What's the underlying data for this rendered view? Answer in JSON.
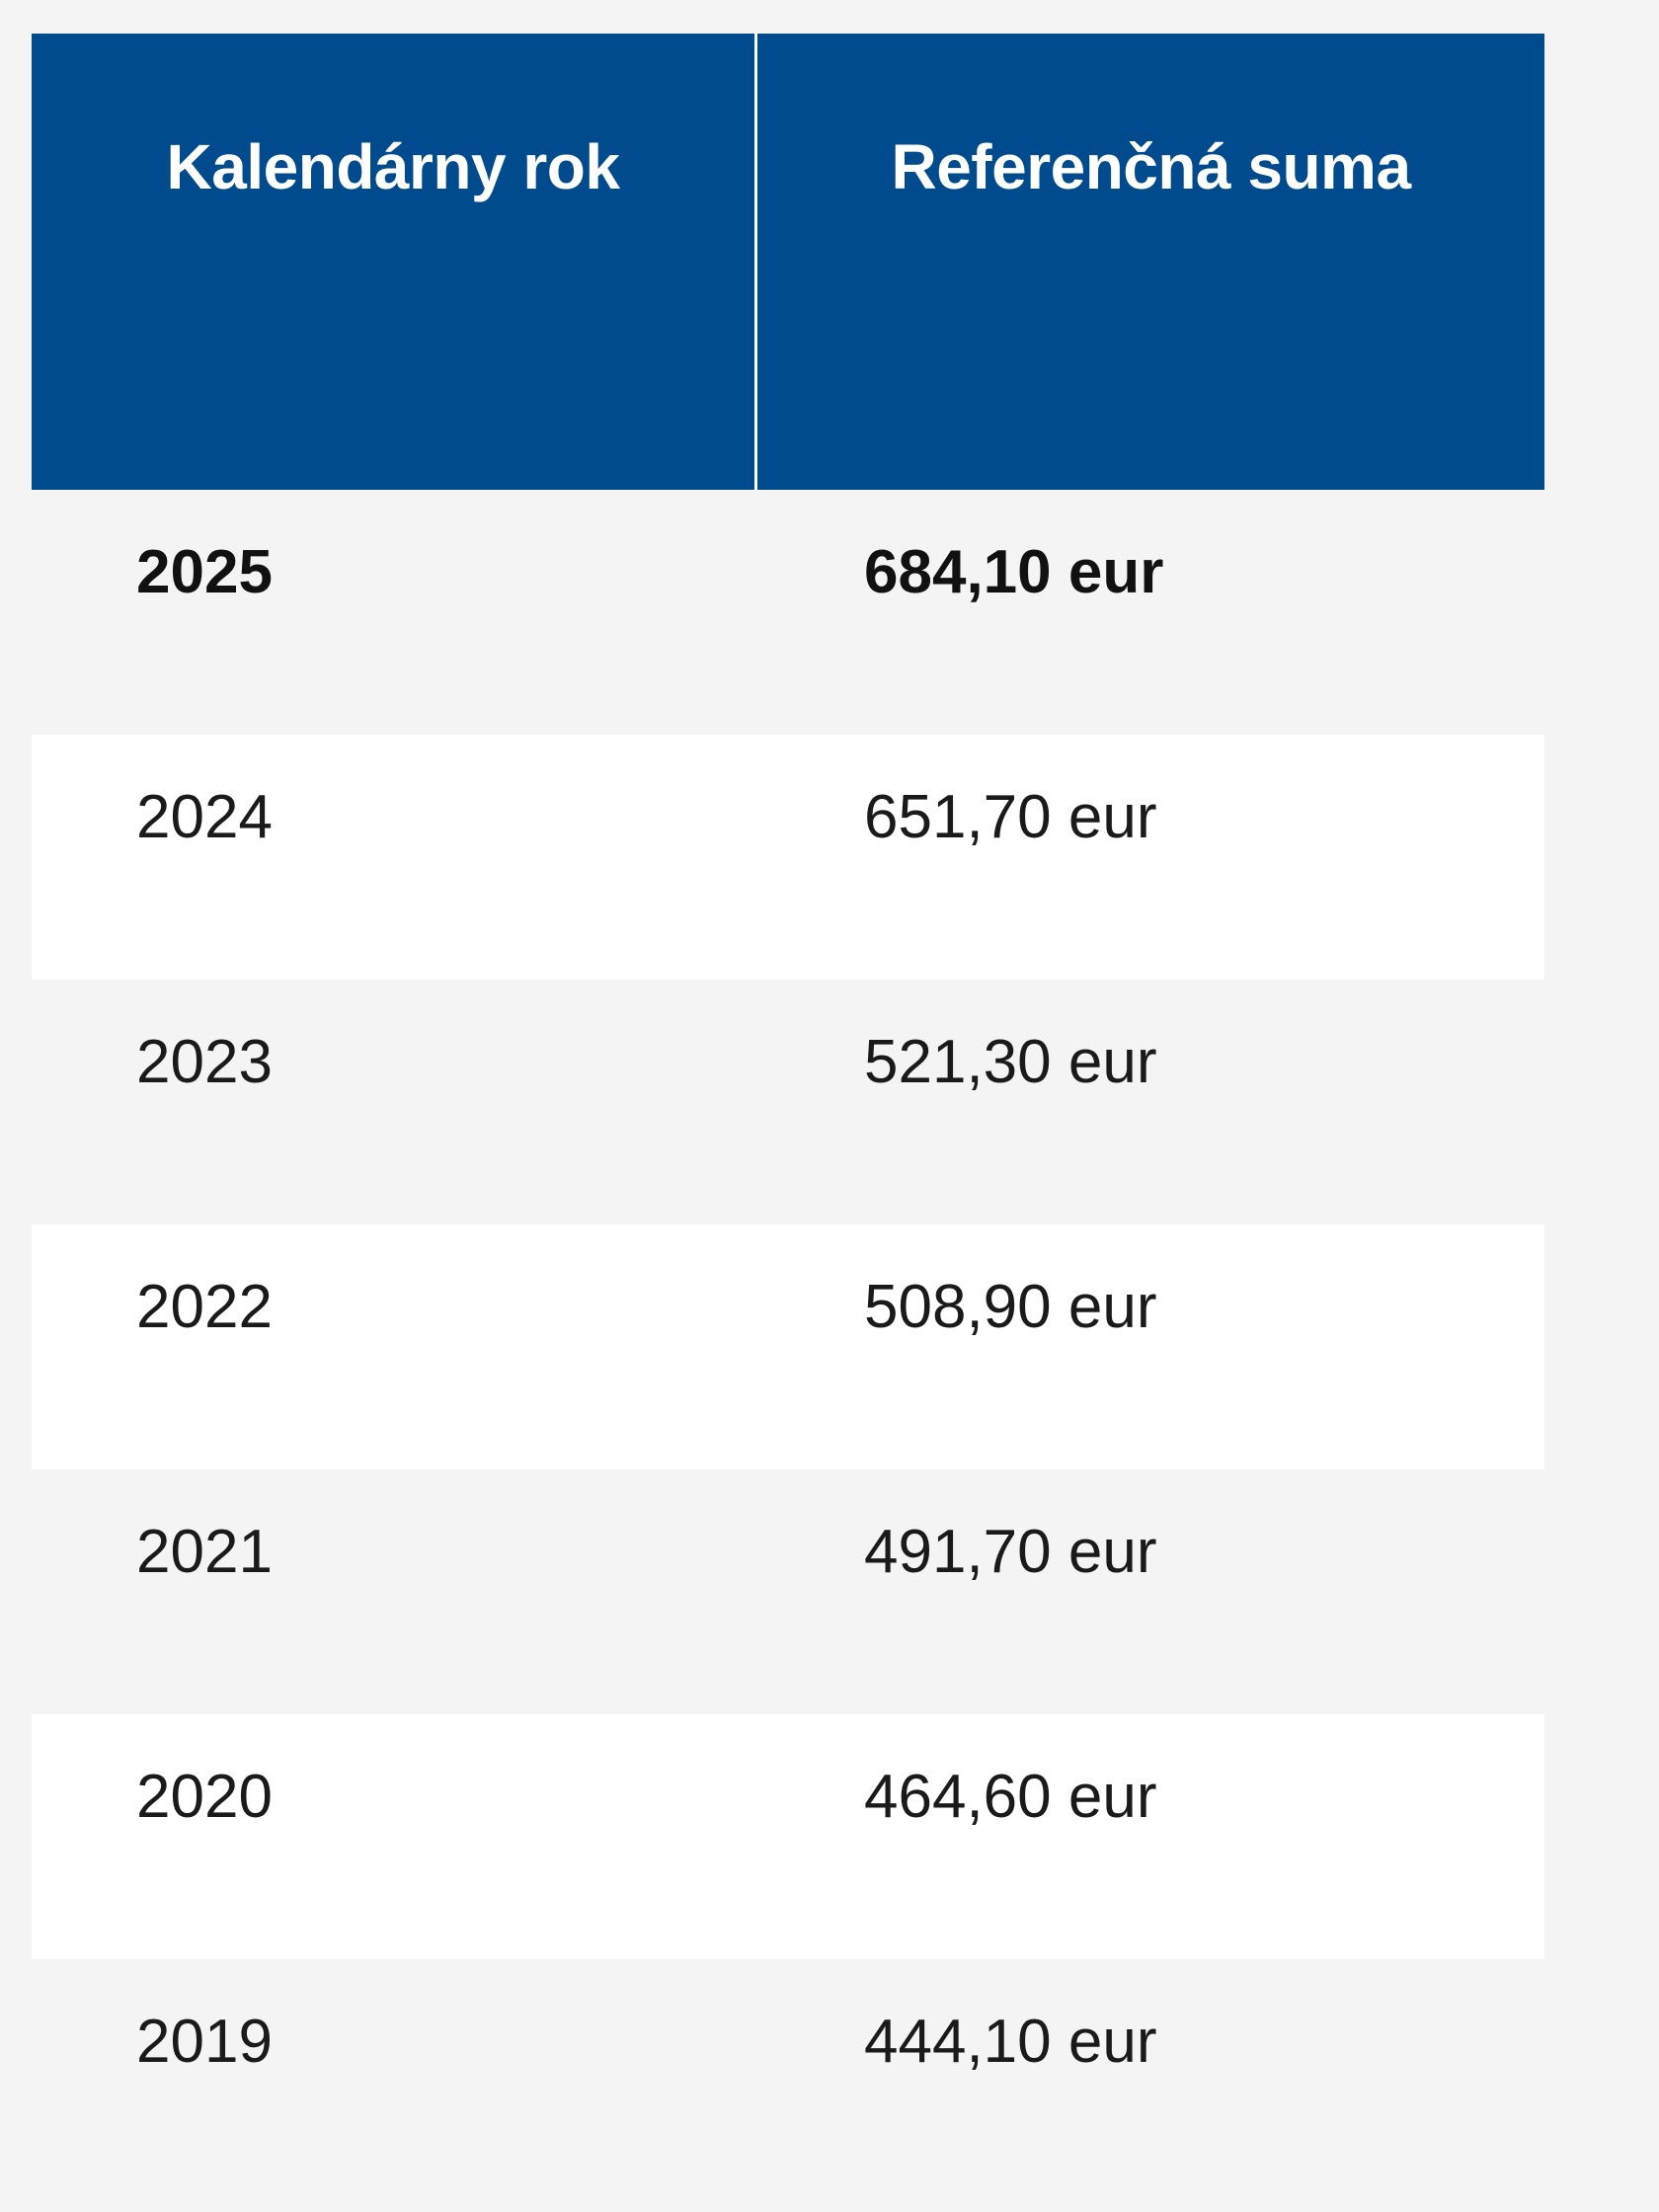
{
  "table": {
    "headers": {
      "year": "Kalendárny rok",
      "amount": "Referenčná suma"
    },
    "rows": [
      {
        "year": "2025",
        "amount": "684,10 eur",
        "bold": true
      },
      {
        "year": "2024",
        "amount": "651,70 eur",
        "bold": false
      },
      {
        "year": "2023",
        "amount": "521,30 eur",
        "bold": false
      },
      {
        "year": "2022",
        "amount": "508,90 eur",
        "bold": false
      },
      {
        "year": "2021",
        "amount": "491,70 eur",
        "bold": false
      },
      {
        "year": "2020",
        "amount": "464,60 eur",
        "bold": false
      },
      {
        "year": "2019",
        "amount": "444,10 eur",
        "bold": false
      }
    ]
  },
  "colors": {
    "header_bg": "#004b8d",
    "header_text": "#ffffff",
    "row_alt_bg": "#ffffff",
    "row_bg": "#f4f4f4"
  }
}
